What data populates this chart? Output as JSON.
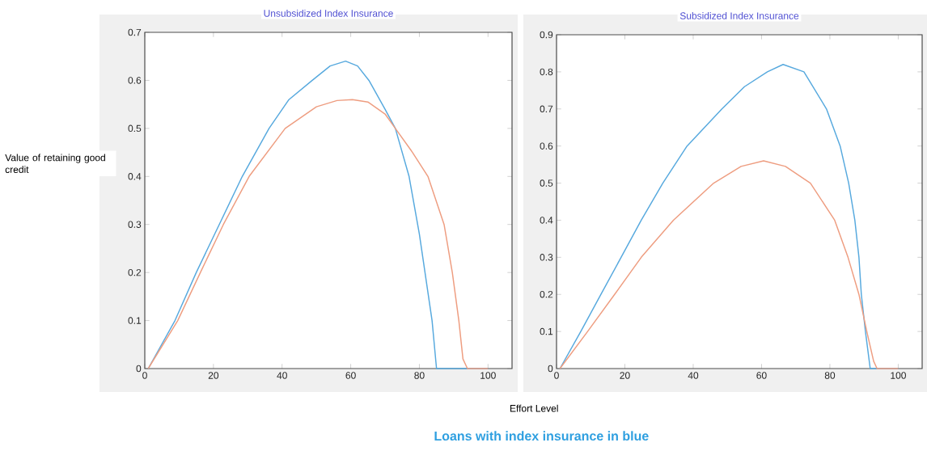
{
  "chart_data": [
    {
      "type": "line",
      "title": "Unsubsidized Index Insurance",
      "xlabel": "Effort Level",
      "ylabel": "Value of retaining good credit",
      "annotations": [
        "Loans with index insurance in blue"
      ],
      "marker": "none",
      "line_style": "solid",
      "xlim": [
        0,
        107
      ],
      "ylim": [
        0,
        0.7
      ],
      "xticks": [
        0,
        20,
        40,
        60,
        80,
        100
      ],
      "yticks": [
        0,
        0.1,
        0.2,
        0.3,
        0.4,
        0.5,
        0.6,
        0.7
      ],
      "series": [
        {
          "color": "#57a9de",
          "x": [
            1,
            8.8,
            15,
            21.7,
            28.4,
            36.2,
            42,
            48.8,
            54,
            58.5,
            62,
            65.3,
            70,
            73,
            77,
            80,
            83.7,
            85,
            100
          ],
          "values": [
            0,
            0.1,
            0.2,
            0.3,
            0.4,
            0.5,
            0.56,
            0.6,
            0.63,
            0.64,
            0.63,
            0.6,
            0.54,
            0.5,
            0.4,
            0.28,
            0.1,
            0,
            0
          ]
        },
        {
          "color": "#ee9d80",
          "x": [
            1,
            9.6,
            16.2,
            22.9,
            30.4,
            40.9,
            50,
            56,
            60.5,
            65,
            70,
            73,
            78,
            82.5,
            87.2,
            89.6,
            91.5,
            92.7,
            94,
            100
          ],
          "values": [
            0,
            0.1,
            0.2,
            0.3,
            0.4,
            0.5,
            0.545,
            0.558,
            0.56,
            0.555,
            0.53,
            0.5,
            0.45,
            0.4,
            0.3,
            0.2,
            0.1,
            0.02,
            0,
            0
          ]
        }
      ]
    },
    {
      "type": "line",
      "title": "Subsidized Index Insurance",
      "marker": "none",
      "line_style": "solid",
      "xlim": [
        0,
        107
      ],
      "ylim": [
        0,
        0.9
      ],
      "xticks": [
        0,
        20,
        40,
        60,
        80,
        100
      ],
      "yticks": [
        0,
        0.1,
        0.2,
        0.3,
        0.4,
        0.5,
        0.6,
        0.7,
        0.8,
        0.9
      ],
      "series": [
        {
          "color": "#57a9de",
          "x": [
            1,
            7.1,
            13,
            18.9,
            24.8,
            31.1,
            38.2,
            48.4,
            55,
            61.7,
            66.3,
            72.4,
            79,
            83,
            85.5,
            87.3,
            88.5,
            89.2,
            90.4,
            91.8,
            100
          ],
          "values": [
            0,
            0.1,
            0.2,
            0.3,
            0.4,
            0.5,
            0.6,
            0.7,
            0.76,
            0.8,
            0.82,
            0.8,
            0.7,
            0.6,
            0.5,
            0.4,
            0.3,
            0.2,
            0.1,
            0,
            0
          ]
        },
        {
          "color": "#ee9d80",
          "x": [
            1,
            9.1,
            17,
            24.8,
            34.2,
            46,
            54,
            60.6,
            67,
            74.3,
            81.4,
            85.3,
            88.5,
            90.8,
            92.8,
            93.8,
            100
          ],
          "values": [
            0,
            0.1,
            0.2,
            0.3,
            0.4,
            0.5,
            0.545,
            0.56,
            0.545,
            0.5,
            0.4,
            0.3,
            0.2,
            0.1,
            0.02,
            0,
            0
          ]
        }
      ]
    }
  ]
}
